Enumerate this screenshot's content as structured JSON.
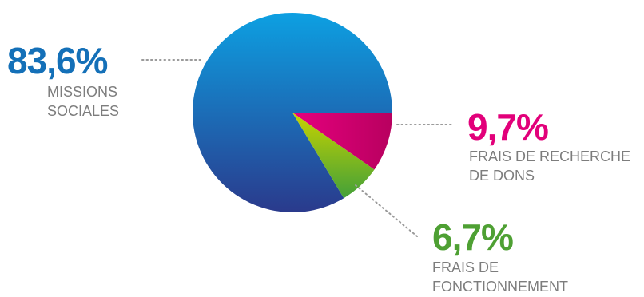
{
  "chart_data": {
    "type": "pie",
    "slices": [
      {
        "value": 83.6,
        "label": "83,6%",
        "name_lines": [
          "MISSIONS",
          "SOCIALES"
        ],
        "color": "#1470b8"
      },
      {
        "value": 9.7,
        "label": "9,7%",
        "name_lines": [
          "FRAIS DE RECHERCHE",
          "DE DONS"
        ],
        "color": "#e2007a"
      },
      {
        "value": 6.7,
        "label": "6,7%",
        "name_lines": [
          "FRAIS DE",
          "FONCTIONNEMENT"
        ],
        "color": "#4ea033"
      }
    ],
    "colors": {
      "missions_gradient": [
        "#0da0e2",
        "#2a3a8c"
      ],
      "recherche_gradient": [
        "#e6007e",
        "#b8005f"
      ],
      "fonctionnement_gradient": [
        "#c7d300",
        "#43a039"
      ],
      "missions_text": "#1470b8",
      "recherche_text": "#e2007a",
      "fonctionnement_text": "#4ea033",
      "label_text": "#7d7d7d",
      "leader": "#9a9a9a"
    }
  }
}
